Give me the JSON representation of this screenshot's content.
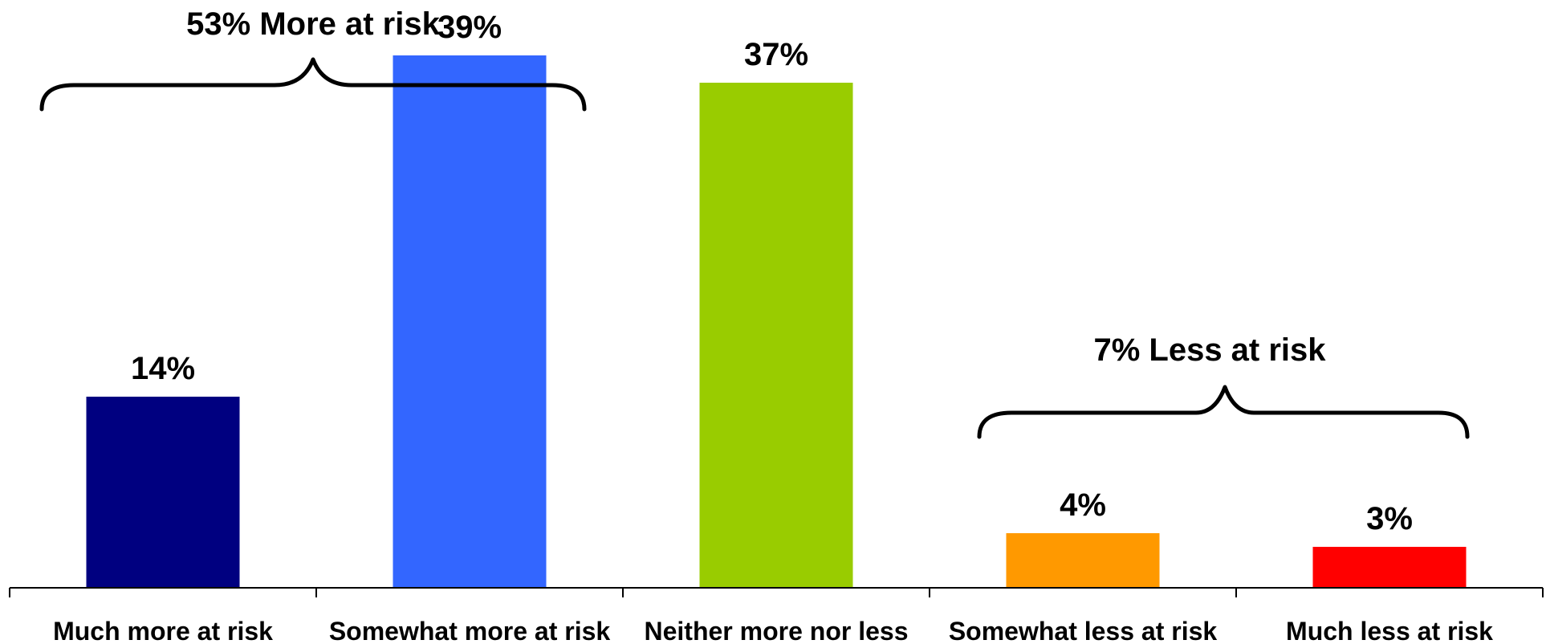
{
  "chart_data": {
    "type": "bar",
    "categories": [
      "Much more at risk",
      "Somewhat more at risk",
      "Neither more nor less",
      "Somewhat less at risk",
      "Much less at risk"
    ],
    "values": [
      14,
      39,
      37,
      4,
      3
    ],
    "value_labels": [
      "14%",
      "39%",
      "37%",
      "4%",
      "3%"
    ],
    "colors": [
      "#000080",
      "#3366FF",
      "#99CC00",
      "#FF9900",
      "#FF0000"
    ],
    "ylim": [
      0,
      40
    ],
    "grid": false,
    "groups": [
      {
        "label": "53% More at risk",
        "start_index": 0,
        "end_index": 1
      },
      {
        "label": "7% Less at risk",
        "start_index": 3,
        "end_index": 4
      }
    ]
  }
}
